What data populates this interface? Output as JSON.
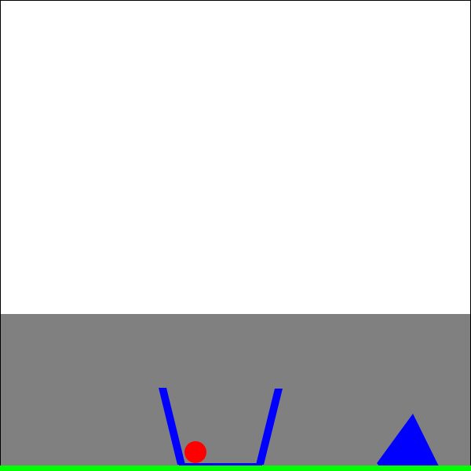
{
  "scene": {
    "background_color": "#ffffff",
    "border_color": "#000000",
    "zone_color": "#808080",
    "ground_color": "#00ff00",
    "cup_color": "#0000ff",
    "ball_color": "#ff0000",
    "obstacle_color": "#0000ff",
    "objects": [
      "ground",
      "cup",
      "ball",
      "triangle-obstacle"
    ]
  }
}
